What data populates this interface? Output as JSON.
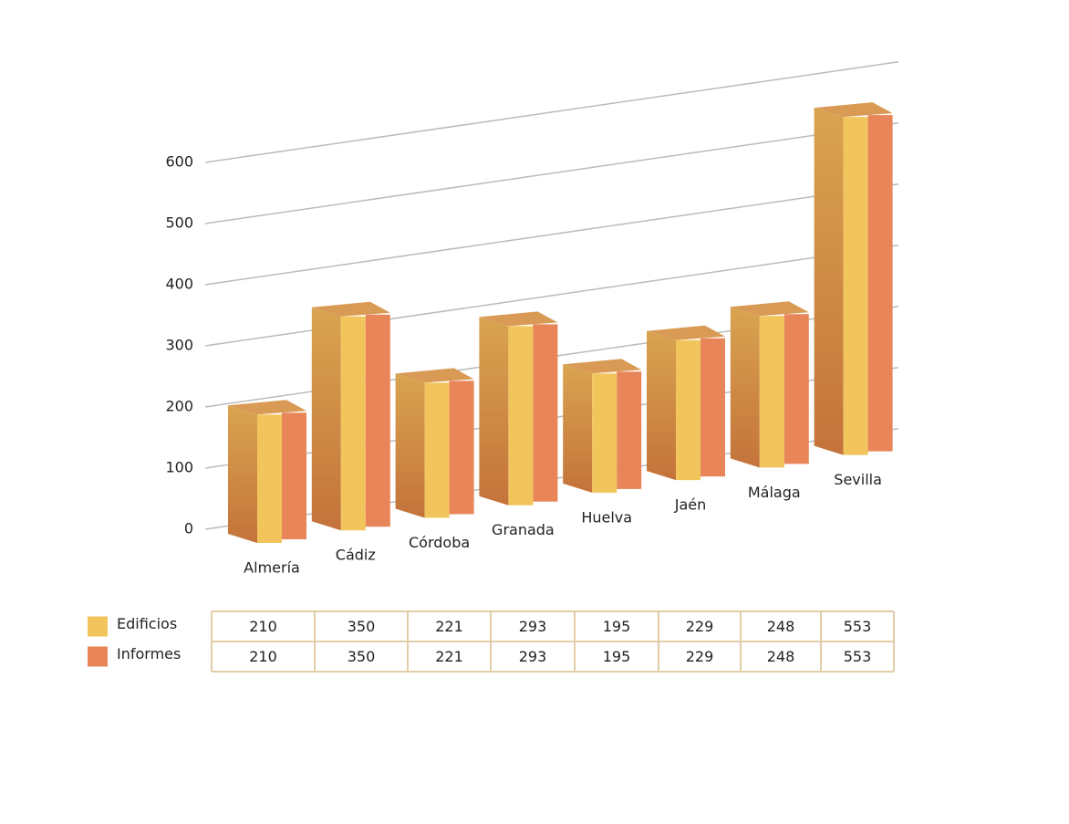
{
  "chart_data": {
    "type": "bar3d",
    "categories": [
      "Almería",
      "Cádiz",
      "Córdoba",
      "Granada",
      "Huelva",
      "Jaén",
      "Málaga",
      "Sevilla"
    ],
    "series": [
      {
        "name": "Edificios",
        "color": "#f2c55c",
        "values": [
          210,
          350,
          221,
          293,
          195,
          229,
          248,
          553
        ]
      },
      {
        "name": "Informes",
        "color": "#e8865a",
        "values": [
          210,
          350,
          221,
          293,
          195,
          229,
          248,
          553
        ]
      }
    ],
    "ylim": [
      0,
      600
    ],
    "yticks": [
      0,
      100,
      200,
      300,
      400,
      500,
      600
    ],
    "grid": true
  }
}
